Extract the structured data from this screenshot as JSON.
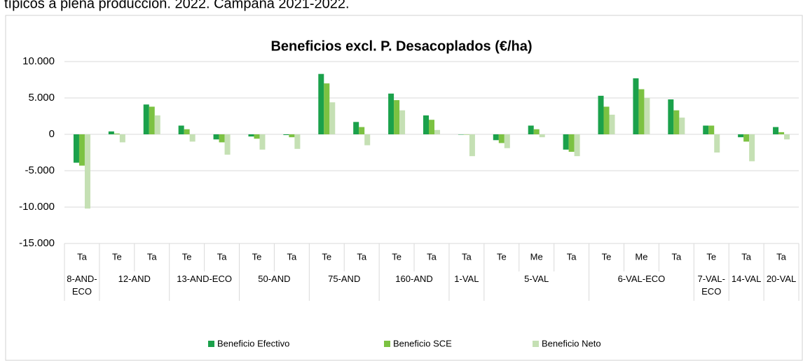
{
  "header_text": "típicos a plena producción. 2022. Campaña 2021-2022.",
  "chart_data": {
    "type": "bar",
    "title": "Beneficios excl. P. Desacoplados (€/ha)",
    "groups": [
      {
        "name": "8-AND-ECO",
        "categories": [
          "Ta"
        ]
      },
      {
        "name": "12-AND",
        "categories": [
          "Te",
          "Ta"
        ]
      },
      {
        "name": "13-AND-ECO",
        "categories": [
          "Te",
          "Ta"
        ]
      },
      {
        "name": "50-AND",
        "categories": [
          "Te",
          "Ta"
        ]
      },
      {
        "name": "75-AND",
        "categories": [
          "Te",
          "Ta"
        ]
      },
      {
        "name": "160-AND",
        "categories": [
          "Te",
          "Ta"
        ]
      },
      {
        "name": "1-VAL",
        "categories": [
          "Ta"
        ]
      },
      {
        "name": "5-VAL",
        "categories": [
          "Te",
          "Me",
          "Ta"
        ]
      },
      {
        "name": "6-VAL-ECO",
        "categories": [
          "Te",
          "Me",
          "Ta"
        ]
      },
      {
        "name": "7-VAL-ECO",
        "categories": [
          "Te"
        ]
      },
      {
        "name": "14-VAL",
        "categories": [
          "Ta"
        ]
      },
      {
        "name": "20-VAL",
        "categories": [
          "Ta"
        ]
      }
    ],
    "series": [
      {
        "name": "Beneficio Efectivo",
        "color": "#1ba14b",
        "values": [
          -3900,
          400,
          4100,
          1200,
          -700,
          -300,
          -100,
          8300,
          1700,
          5600,
          2600,
          0,
          -800,
          1200,
          -2100,
          5300,
          7700,
          4800,
          1200,
          -400,
          1000
        ]
      },
      {
        "name": "Beneficio SCE",
        "color": "#7cc242",
        "values": [
          -4300,
          100,
          3800,
          700,
          -1100,
          -600,
          -400,
          7000,
          1000,
          4700,
          2000,
          0,
          -1200,
          700,
          -2400,
          3800,
          6200,
          3300,
          1200,
          -1000,
          300
        ]
      },
      {
        "name": "Beneficio Neto",
        "color": "#c5e0b4",
        "values": [
          -10200,
          -1100,
          2600,
          -1000,
          -2800,
          -2100,
          -2000,
          4400,
          -1500,
          3300,
          600,
          -3000,
          -1900,
          -400,
          -3000,
          2700,
          5000,
          2300,
          -2500,
          -3700,
          -700
        ]
      }
    ],
    "ylim": [
      -15000,
      10000
    ],
    "yticks": [
      {
        "value": -15000,
        "label": "-15.000"
      },
      {
        "value": -10000,
        "label": "-10.000"
      },
      {
        "value": -5000,
        "label": "-5.000"
      },
      0,
      {
        "value": 5000,
        "label": "5.000"
      },
      {
        "value": 10000,
        "label": "10.000"
      }
    ],
    "grid": true,
    "legend": "bottom"
  }
}
